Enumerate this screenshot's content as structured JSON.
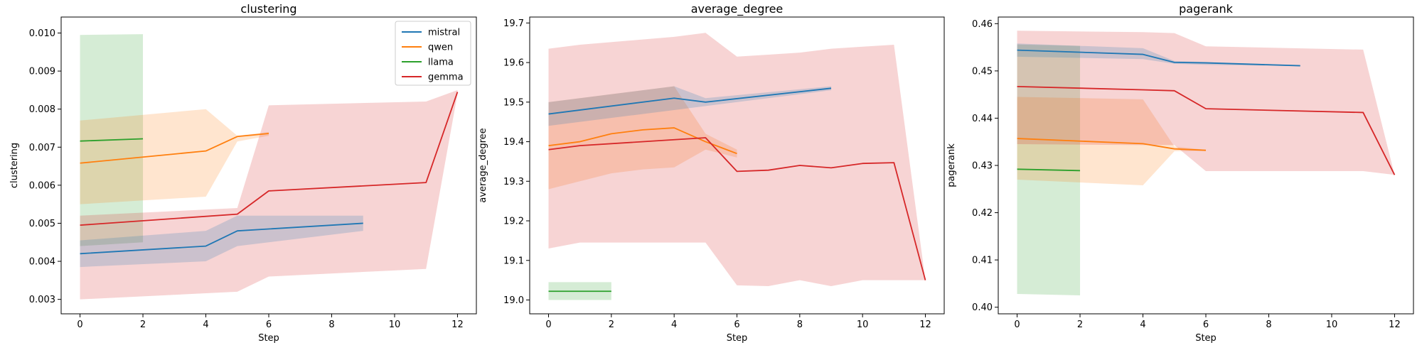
{
  "colors": {
    "mistral": "#1f77b4",
    "qwen": "#ff7f0e",
    "llama": "#2ca02c",
    "gemma": "#d62728"
  },
  "legend": {
    "placement": "top-right of first panel",
    "entries": [
      "mistral",
      "qwen",
      "llama",
      "gemma"
    ]
  },
  "chart_data": [
    {
      "type": "line",
      "title": "clustering",
      "xlabel": "Step",
      "ylabel": "clustering",
      "xlim": [
        -0.6,
        12.6
      ],
      "ylim": [
        0.00262,
        0.01042
      ],
      "xticks": [
        0,
        2,
        4,
        6,
        8,
        10,
        12
      ],
      "yticks": [
        0.003,
        0.004,
        0.005,
        0.006,
        0.007,
        0.008,
        0.009,
        0.01
      ],
      "ytick_labels": [
        "0.003",
        "0.004",
        "0.005",
        "0.006",
        "0.007",
        "0.008",
        "0.009",
        "0.010"
      ],
      "grid": false,
      "series": [
        {
          "name": "mistral",
          "x": [
            0,
            4,
            5,
            9
          ],
          "y": [
            0.0042,
            0.0044,
            0.0048,
            0.005
          ],
          "lower": [
            0.00385,
            0.004,
            0.0044,
            0.0048
          ],
          "upper": [
            0.00455,
            0.0048,
            0.0052,
            0.0052
          ]
        },
        {
          "name": "qwen",
          "x": [
            0,
            4,
            5,
            6
          ],
          "y": [
            0.00658,
            0.0069,
            0.00728,
            0.00736
          ],
          "lower": [
            0.0055,
            0.0057,
            0.00715,
            0.0073
          ],
          "upper": [
            0.0077,
            0.008,
            0.0073,
            0.0074
          ]
        },
        {
          "name": "llama",
          "x": [
            0,
            2
          ],
          "y": [
            0.00716,
            0.00722
          ],
          "lower": [
            0.0044,
            0.0045
          ],
          "upper": [
            0.00995,
            0.00997
          ]
        },
        {
          "name": "gemma",
          "x": [
            0,
            5,
            6,
            11,
            12
          ],
          "y": [
            0.00495,
            0.00524,
            0.00585,
            0.00607,
            0.00845
          ],
          "lower": [
            0.003,
            0.0032,
            0.0036,
            0.0038,
            0.0084
          ],
          "upper": [
            0.0052,
            0.0054,
            0.0081,
            0.0082,
            0.0085
          ]
        }
      ]
    },
    {
      "type": "line",
      "title": "average_degree",
      "xlabel": "Step",
      "ylabel": "average_degree",
      "xlim": [
        -0.6,
        12.6
      ],
      "ylim": [
        18.965,
        19.715
      ],
      "xticks": [
        0,
        2,
        4,
        6,
        8,
        10,
        12
      ],
      "yticks": [
        19.0,
        19.1,
        19.2,
        19.3,
        19.4,
        19.5,
        19.6,
        19.7
      ],
      "ytick_labels": [
        "19.0",
        "19.1",
        "19.2",
        "19.3",
        "19.4",
        "19.5",
        "19.6",
        "19.7"
      ],
      "grid": false,
      "series": [
        {
          "name": "mistral",
          "x": [
            0,
            4,
            5,
            9
          ],
          "y": [
            19.47,
            19.51,
            19.5,
            19.535
          ],
          "lower": [
            19.44,
            19.48,
            19.49,
            19.53
          ],
          "upper": [
            19.5,
            19.54,
            19.51,
            19.54
          ]
        },
        {
          "name": "qwen",
          "x": [
            0,
            1,
            2,
            3,
            4,
            5,
            6
          ],
          "y": [
            19.39,
            19.4,
            19.42,
            19.43,
            19.435,
            19.4,
            19.37
          ],
          "lower": [
            19.28,
            19.3,
            19.32,
            19.33,
            19.335,
            19.38,
            19.36
          ],
          "upper": [
            19.5,
            19.51,
            19.52,
            19.53,
            19.54,
            19.42,
            19.38
          ]
        },
        {
          "name": "llama",
          "x": [
            0,
            2
          ],
          "y": [
            19.022,
            19.022
          ],
          "lower": [
            19.0,
            19.0
          ],
          "upper": [
            19.045,
            19.045
          ]
        },
        {
          "name": "gemma",
          "x": [
            0,
            1,
            4,
            5,
            6,
            7,
            8,
            9,
            10,
            11,
            12
          ],
          "y": [
            19.38,
            19.39,
            19.405,
            19.41,
            19.325,
            19.328,
            19.34,
            19.334,
            19.345,
            19.347,
            19.05
          ],
          "lower": [
            19.13,
            19.145,
            19.145,
            19.145,
            19.037,
            19.035,
            19.05,
            19.035,
            19.05,
            19.05,
            19.05
          ],
          "upper": [
            19.635,
            19.645,
            19.665,
            19.675,
            19.615,
            19.62,
            19.625,
            19.635,
            19.64,
            19.645,
            19.05
          ]
        }
      ]
    },
    {
      "type": "line",
      "title": "pagerank",
      "xlabel": "Step",
      "ylabel": "pagerank",
      "xlim": [
        -0.6,
        12.6
      ],
      "ylim": [
        0.3986,
        0.4614
      ],
      "xticks": [
        0,
        2,
        4,
        6,
        8,
        10,
        12
      ],
      "yticks": [
        0.4,
        0.41,
        0.42,
        0.43,
        0.44,
        0.45,
        0.46
      ],
      "ytick_labels": [
        "0.40",
        "0.41",
        "0.42",
        "0.43",
        "0.44",
        "0.45",
        "0.46"
      ],
      "grid": false,
      "series": [
        {
          "name": "mistral",
          "x": [
            0,
            4,
            5,
            6,
            9
          ],
          "y": [
            0.4544,
            0.4535,
            0.4518,
            0.4517,
            0.4511
          ],
          "lower": [
            0.453,
            0.4525,
            0.4515,
            0.4513,
            0.451
          ],
          "upper": [
            0.4558,
            0.4548,
            0.4521,
            0.4519,
            0.4512
          ]
        },
        {
          "name": "qwen",
          "x": [
            0,
            4,
            5,
            6
          ],
          "y": [
            0.4357,
            0.4346,
            0.4335,
            0.4332
          ],
          "lower": [
            0.427,
            0.4258,
            0.433,
            0.4331
          ],
          "upper": [
            0.4445,
            0.444,
            0.434,
            0.4333
          ]
        },
        {
          "name": "llama",
          "x": [
            0,
            2
          ],
          "y": [
            0.4292,
            0.4289
          ],
          "lower": [
            0.4028,
            0.4025
          ],
          "upper": [
            0.4556,
            0.4553
          ]
        },
        {
          "name": "gemma",
          "x": [
            0,
            4,
            5,
            6,
            11,
            12
          ],
          "y": [
            0.4467,
            0.446,
            0.4458,
            0.442,
            0.4412,
            0.428
          ],
          "lower": [
            0.4345,
            0.4343,
            0.4343,
            0.4288,
            0.4288,
            0.428
          ],
          "upper": [
            0.4585,
            0.4582,
            0.458,
            0.4552,
            0.4545,
            0.428
          ]
        }
      ]
    }
  ]
}
